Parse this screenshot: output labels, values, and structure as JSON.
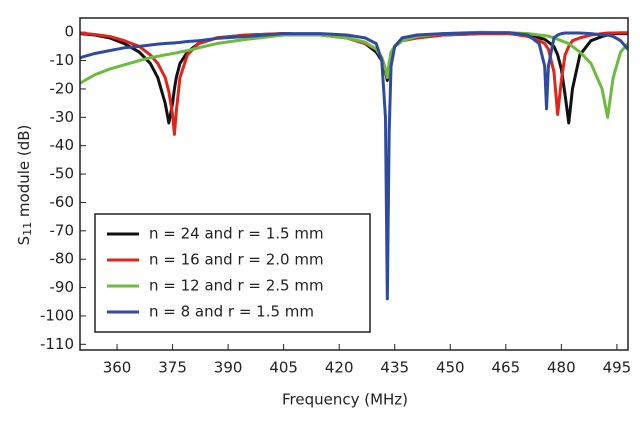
{
  "chart_data": {
    "type": "line",
    "xlabel": "Frequency (MHz)",
    "ylabel": [
      "S",
      "11",
      " module (dB)"
    ],
    "xlim": [
      350,
      498
    ],
    "ylim": [
      -112,
      5
    ],
    "xticks": [
      360,
      375,
      390,
      405,
      420,
      435,
      450,
      465,
      480,
      495
    ],
    "yticks": [
      0,
      -10,
      -20,
      -30,
      -40,
      -50,
      -60,
      -70,
      -80,
      -90,
      -100,
      -110
    ],
    "legend": "lower left",
    "x": [
      350,
      354,
      358,
      362,
      366,
      369,
      371,
      373,
      374,
      375,
      375.5,
      376,
      377,
      379,
      382,
      387,
      395,
      405,
      415,
      422,
      427,
      430,
      431.5,
      432.5,
      433,
      433.5,
      434,
      435,
      437,
      441,
      448,
      458,
      466,
      471,
      474,
      475.5,
      476,
      476.5,
      478,
      479,
      480,
      481,
      482,
      483,
      485,
      488,
      491,
      492.5,
      494,
      496,
      498
    ],
    "series": [
      {
        "name": "n = 24 and r = 1.5 mm",
        "color": "#111111",
        "values": [
          -0.5,
          -1,
          -2,
          -4,
          -7,
          -11,
          -16,
          -25,
          -32,
          -25,
          -20,
          -16,
          -11,
          -7,
          -4,
          -2,
          -1,
          -0.5,
          -1,
          -2,
          -4,
          -7,
          -10,
          -14,
          -17,
          -12,
          -8,
          -5,
          -3,
          -2,
          -1,
          -0.5,
          -0.5,
          -1,
          -2,
          -2.5,
          -3,
          -3.5,
          -5,
          -8,
          -13,
          -22,
          -32,
          -20,
          -8,
          -3,
          -1.5,
          -1,
          -0.5,
          -0.5,
          -0.5
        ]
      },
      {
        "name": "n = 16 and r = 2.0 mm",
        "color": "#e3241b",
        "values": [
          -0.3,
          -0.8,
          -1.5,
          -3,
          -5,
          -8,
          -11,
          -16,
          -21,
          -29,
          -36,
          -28,
          -16,
          -8,
          -4,
          -2,
          -1,
          -0.5,
          -1,
          -2,
          -4,
          -6,
          -9,
          -13,
          -16,
          -11,
          -8,
          -5,
          -3,
          -2,
          -1,
          -0.5,
          -0.5,
          -1.5,
          -3,
          -4,
          -5,
          -6,
          -14,
          -29,
          -17,
          -8,
          -5,
          -3,
          -2,
          -1,
          -0.5,
          -0.3,
          -0.3,
          -0.2,
          -0.2
        ]
      },
      {
        "name": "n = 12 and r = 2.5 mm",
        "color": "#6cbb3c",
        "values": [
          -18,
          -15,
          -13,
          -11.5,
          -10,
          -9,
          -8.5,
          -8,
          -7.8,
          -7.5,
          -7.4,
          -7.3,
          -7,
          -6.5,
          -5.5,
          -4,
          -2.5,
          -1,
          -1,
          -2,
          -3.5,
          -6,
          -9,
          -13,
          -16,
          -11,
          -7,
          -5,
          -3,
          -1.5,
          -0.5,
          0,
          -0.2,
          -0.5,
          -1,
          -1.2,
          -1.3,
          -1.4,
          -2,
          -2.5,
          -3,
          -3.5,
          -4,
          -5,
          -7,
          -11,
          -20,
          -30,
          -16,
          -7,
          -4
        ]
      },
      {
        "name": "n = 8 and r = 1.5 mm",
        "color": "#2e4ba0",
        "values": [
          -9,
          -7.5,
          -6.5,
          -5.5,
          -5,
          -4.5,
          -4.2,
          -4,
          -3.9,
          -3.8,
          -3.8,
          -3.7,
          -3.6,
          -3.3,
          -3,
          -2.2,
          -1.5,
          -0.5,
          -0.5,
          -1,
          -2,
          -4,
          -10,
          -30,
          -94,
          -35,
          -12,
          -5,
          -2,
          -1,
          -0.5,
          -0.2,
          -0.2,
          -1,
          -4,
          -12,
          -27,
          -12,
          -2,
          -1,
          -0.5,
          -0.3,
          -0.3,
          -0.3,
          -0.3,
          -0.5,
          -1,
          -1,
          -1.5,
          -3,
          -6
        ]
      }
    ]
  }
}
